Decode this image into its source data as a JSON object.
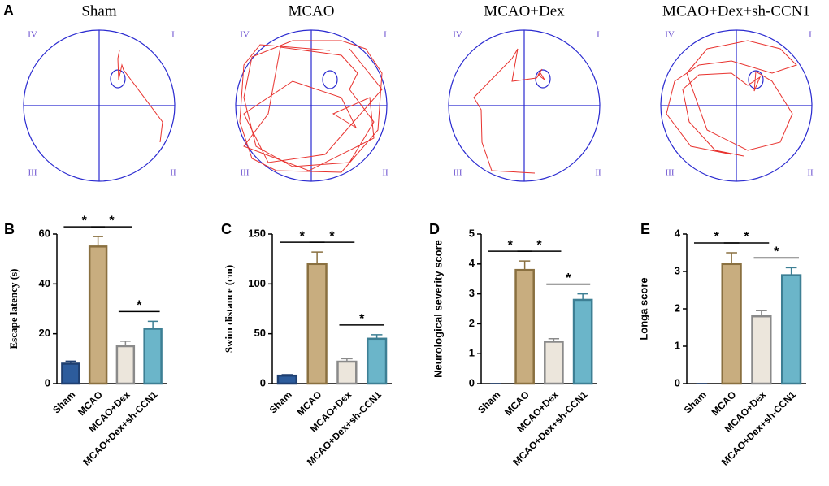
{
  "panel_a": {
    "panel_label": "A",
    "groups": [
      {
        "title": "Sham",
        "quadrants": [
          "IV",
          "I",
          "III",
          "II"
        ]
      },
      {
        "title": "MCAO",
        "quadrants": [
          "IV",
          "I",
          "III",
          "II"
        ]
      },
      {
        "title": "MCAO+Dex",
        "quadrants": [
          "IV",
          "I",
          "III",
          "II"
        ]
      },
      {
        "title": "MCAO+Dex+sh-CCN1",
        "quadrants": [
          "IV",
          "I",
          "III",
          "II"
        ]
      }
    ]
  },
  "chart_data": [
    {
      "type": "bar",
      "panel_label": "B",
      "y_label": "Escape latency (s)",
      "categories": [
        "Sham",
        "MCAO",
        "MCAO+Dex",
        "MCAO+Dex+sh-CCN1"
      ],
      "values": [
        8,
        55,
        15,
        22
      ],
      "errors": [
        1,
        4,
        2,
        3
      ],
      "colors": [
        "#2d5c9c",
        "#c8ad7f",
        "#ece6dc",
        "#6bb5c9"
      ],
      "ylim": [
        0,
        60
      ],
      "yticks": [
        0,
        20,
        40,
        60
      ],
      "significance": [
        {
          "text": "*",
          "between": [
            "Sham",
            "MCAO"
          ]
        },
        {
          "text": "*",
          "between": [
            "MCAO",
            "MCAO+Dex"
          ]
        },
        {
          "text": "*",
          "between": [
            "MCAO+Dex",
            "MCAO+Dex+sh-CCN1"
          ]
        }
      ]
    },
    {
      "type": "bar",
      "panel_label": "C",
      "y_label": "Swim distance (cm)",
      "categories": [
        "Sham",
        "MCAO",
        "MCAO+Dex",
        "MCAO+Dex+sh-CCN1"
      ],
      "values": [
        8,
        120,
        22,
        45
      ],
      "errors": [
        1,
        12,
        3,
        4
      ],
      "colors": [
        "#2d5c9c",
        "#c8ad7f",
        "#ece6dc",
        "#6bb5c9"
      ],
      "ylim": [
        0,
        150
      ],
      "yticks": [
        0,
        50,
        100,
        150
      ],
      "significance": [
        {
          "text": "*",
          "between": [
            "Sham",
            "MCAO"
          ]
        },
        {
          "text": "*",
          "between": [
            "MCAO",
            "MCAO+Dex"
          ]
        },
        {
          "text": "*",
          "between": [
            "MCAO+Dex",
            "MCAO+Dex+sh-CCN1"
          ]
        }
      ]
    },
    {
      "type": "bar",
      "panel_label": "D",
      "y_label": "Neurological severity score",
      "categories": [
        "Sham",
        "MCAO",
        "MCAO+Dex",
        "MCAO+Dex+sh-CCN1"
      ],
      "values": [
        0,
        3.8,
        1.4,
        2.8
      ],
      "errors": [
        0,
        0.3,
        0.1,
        0.2
      ],
      "colors": [
        "#2d5c9c",
        "#c8ad7f",
        "#ece6dc",
        "#6bb5c9"
      ],
      "ylim": [
        0,
        5
      ],
      "yticks": [
        0,
        1,
        2,
        3,
        4,
        5
      ],
      "significance": [
        {
          "text": "*",
          "between": [
            "Sham",
            "MCAO"
          ]
        },
        {
          "text": "*",
          "between": [
            "MCAO",
            "MCAO+Dex"
          ]
        },
        {
          "text": "*",
          "between": [
            "MCAO+Dex",
            "MCAO+Dex+sh-CCN1"
          ]
        }
      ]
    },
    {
      "type": "bar",
      "panel_label": "E",
      "y_label": "Longa score",
      "categories": [
        "Sham",
        "MCAO",
        "MCAO+Dex",
        "MCAO+Dex+sh-CCN1"
      ],
      "values": [
        0,
        3.2,
        1.8,
        2.9
      ],
      "errors": [
        0,
        0.3,
        0.15,
        0.2
      ],
      "colors": [
        "#2d5c9c",
        "#c8ad7f",
        "#ece6dc",
        "#6bb5c9"
      ],
      "ylim": [
        0,
        4
      ],
      "yticks": [
        0,
        1,
        2,
        3,
        4
      ],
      "significance": [
        {
          "text": "*",
          "between": [
            "Sham",
            "MCAO"
          ]
        },
        {
          "text": "*",
          "between": [
            "MCAO",
            "MCAO+Dex"
          ]
        },
        {
          "text": "*",
          "between": [
            "MCAO+Dex",
            "MCAO+Dex+sh-CCN1"
          ]
        }
      ]
    }
  ]
}
